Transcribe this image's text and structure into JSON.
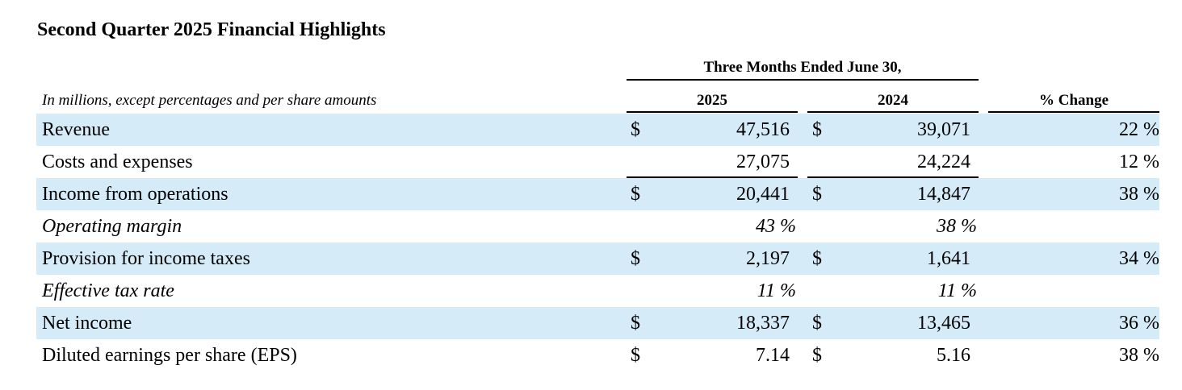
{
  "title": "Second Quarter 2025 Financial Highlights",
  "period_header": "Three Months Ended June 30,",
  "units_note": "In millions, except percentages and per share amounts",
  "columns": {
    "y2025": "2025",
    "y2024": "2024",
    "change": "% Change"
  },
  "currency_symbol": "$",
  "rows": [
    {
      "label": "Revenue",
      "v2025": "47,516",
      "v2024": "39,071",
      "change": "22 %"
    },
    {
      "label": "Costs and expenses",
      "v2025": "27,075",
      "v2024": "24,224",
      "change": "12 %"
    },
    {
      "label": "Income from operations",
      "v2025": "20,441",
      "v2024": "14,847",
      "change": "38 %"
    },
    {
      "label": "Operating margin",
      "v2025": "43 %",
      "v2024": "38 %"
    },
    {
      "label": "Provision for income taxes",
      "v2025": "2,197",
      "v2024": "1,641",
      "change": "34 %"
    },
    {
      "label": "Effective tax rate",
      "v2025": "11 %",
      "v2024": "11 %"
    },
    {
      "label": "Net income",
      "v2025": "18,337",
      "v2024": "13,465",
      "change": "36 %"
    },
    {
      "label": "Diluted earnings per share (EPS)",
      "v2025": "7.14",
      "v2024": "5.16",
      "change": "38 %"
    }
  ],
  "colors": {
    "row_shading": "#d5ebf8",
    "text": "#000000",
    "rules": "#000000"
  }
}
